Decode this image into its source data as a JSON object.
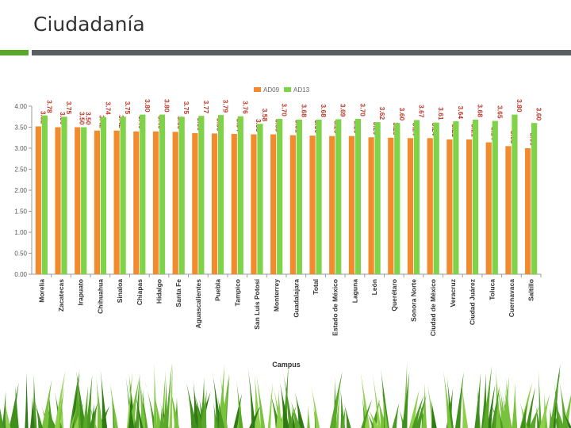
{
  "slide": {
    "title": "Ciudadanía"
  },
  "colors": {
    "series_ad09": "#f28a2e",
    "series_ad13": "#7ed348",
    "axis": "#9a9a9a",
    "tick_text": "#555555",
    "category_text": "#333333",
    "accent_green": "#5aa82a",
    "accent_gray": "#5a5f63",
    "data_label": "#c0392b"
  },
  "chart_data": {
    "type": "bar",
    "title": "",
    "xlabel": "Campus",
    "ylabel": "",
    "ylim": [
      0,
      4
    ],
    "yticks": [
      "0.00",
      "0.50",
      "1.00",
      "1.50",
      "2.00",
      "2.50",
      "3.00",
      "3.50",
      "4.00"
    ],
    "grid": false,
    "legend_position": "top-center",
    "categories": [
      "Morelia",
      "Zacatecas",
      "Irapuato",
      "Chihuahua",
      "Sinaloa",
      "Chiapas",
      "Hidalgo",
      "Santa Fe",
      "Aguascalientes",
      "Puebla",
      "Tampico",
      "San Luis Potosí",
      "Monterrey",
      "Guadalajara",
      "Total",
      "Estado de México",
      "Laguna",
      "León",
      "Querétaro",
      "Sonora Norte",
      "Ciudad de México",
      "Veracruz",
      "Ciudad Juárez",
      "Toluca",
      "Cuernavaca",
      "Saltillo"
    ],
    "series": [
      {
        "name": "AD09",
        "values": [
          3.52,
          3.5,
          3.5,
          3.42,
          3.42,
          3.4,
          3.4,
          3.39,
          3.36,
          3.35,
          3.34,
          3.33,
          3.33,
          3.31,
          3.3,
          3.29,
          3.29,
          3.26,
          3.25,
          3.24,
          3.24,
          3.21,
          3.21,
          3.14,
          3.05,
          3.0
        ],
        "labels": [
          "3.52",
          "3.50",
          "3.50",
          "3.42",
          "3.42",
          "3.40",
          "3.40",
          "3.39",
          "3.36",
          "3.35",
          "3.34",
          "3.33",
          "3.33",
          "3.31",
          "3.30",
          "3.29",
          "3.29",
          "3.26",
          "3.25",
          "3.24",
          "3.24",
          "3.21",
          "3.21",
          "3.14",
          "3.05",
          "3.00"
        ]
      },
      {
        "name": "AD13",
        "values": [
          3.78,
          3.75,
          3.5,
          3.74,
          3.75,
          3.8,
          3.8,
          3.75,
          3.77,
          3.79,
          3.76,
          3.58,
          3.7,
          3.68,
          3.68,
          3.69,
          3.7,
          3.62,
          3.6,
          3.67,
          3.61,
          3.64,
          3.68,
          3.65,
          3.8,
          3.6
        ],
        "labels": [
          "3.78",
          "3.75",
          "3.50",
          "3.74",
          "3.75",
          "3.80",
          "3.80",
          "3.75",
          "3.77",
          "3.79",
          "3.76",
          "3.58",
          "3.70",
          "3.68",
          "3.68",
          "3.69",
          "3.70",
          "3.62",
          "3.60",
          "3.67",
          "3.61",
          "3.64",
          "3.68",
          "3.65",
          "3.80",
          "3.60"
        ]
      }
    ]
  }
}
